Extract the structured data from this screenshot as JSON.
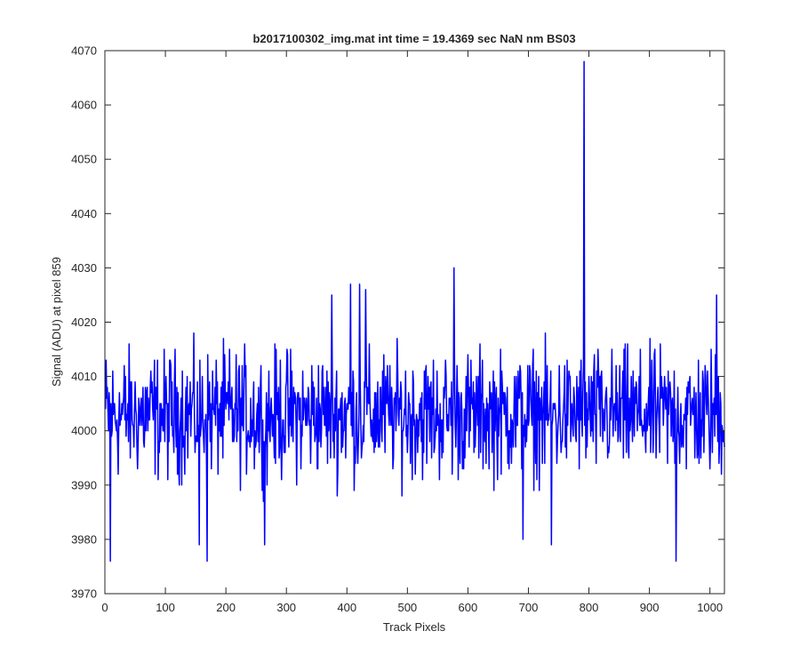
{
  "chart_data": {
    "type": "line",
    "title": "b2017100302_img.mat int time = 19.4369 sec  NaN nm BS03",
    "xlabel": "Track Pixels",
    "ylabel": "Signal (ADU) at pixel 859",
    "xlim": [
      0,
      1024
    ],
    "ylim": [
      3970,
      4070
    ],
    "xticks": [
      0,
      100,
      200,
      300,
      400,
      500,
      600,
      700,
      800,
      900,
      1000
    ],
    "yticks": [
      3970,
      3980,
      3990,
      4000,
      4010,
      4020,
      4030,
      4040,
      4050,
      4060,
      4070
    ],
    "grid": false,
    "series": [
      {
        "color": "#0000ff",
        "n_points": 1024,
        "baseline": 4003,
        "noise_range": [
          3976,
          4027
        ],
        "notable_points": [
          {
            "x": 8,
            "y": 3976
          },
          {
            "x": 155,
            "y": 3979
          },
          {
            "x": 168,
            "y": 3976
          },
          {
            "x": 263,
            "y": 3979
          },
          {
            "x": 374,
            "y": 4025
          },
          {
            "x": 405,
            "y": 4027
          },
          {
            "x": 420,
            "y": 4027
          },
          {
            "x": 430,
            "y": 4026
          },
          {
            "x": 576,
            "y": 4030
          },
          {
            "x": 690,
            "y": 3980
          },
          {
            "x": 737,
            "y": 3979
          },
          {
            "x": 791,
            "y": 4068
          },
          {
            "x": 943,
            "y": 3976
          },
          {
            "x": 1010,
            "y": 4025
          }
        ]
      }
    ]
  }
}
